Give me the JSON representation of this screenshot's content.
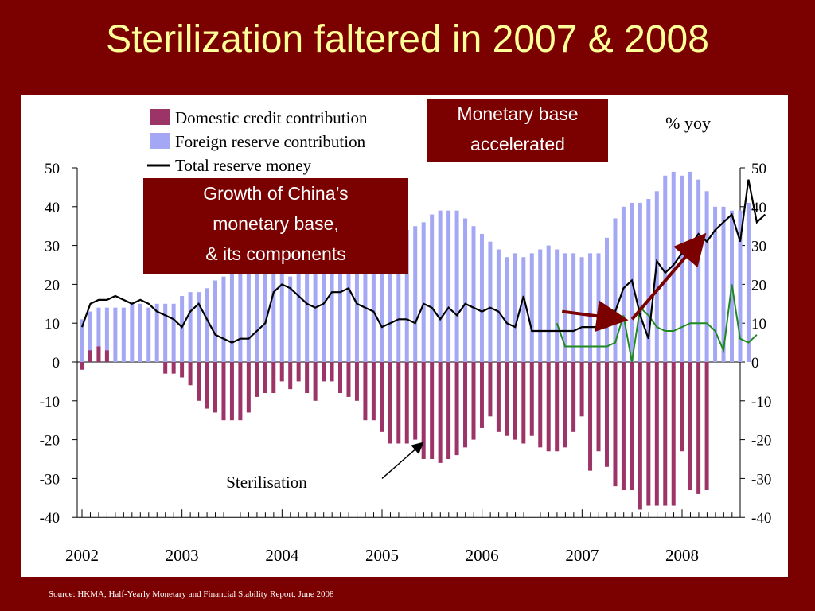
{
  "slide": {
    "title": "Sterilization faltered in 2007 & 2008",
    "source": "Source: HKMA, Half-Yearly Monetary and Financial Stability Report, June 2008"
  },
  "callouts": {
    "monetary_base": [
      "Monetary base",
      "accelerated"
    ],
    "growth": [
      "Growth of China’s",
      "monetary base,",
      "& its components"
    ]
  },
  "colors": {
    "background": "#7b0000",
    "title": "#ffff99",
    "domestic": "#9c3468",
    "foreign": "#a4a8f4",
    "total": "#000000",
    "green_line": "#1f8a1f",
    "arrow": "#7b0000"
  },
  "chart_data": {
    "type": "bar",
    "unit_label": "% yoy",
    "annotation": "Sterilisation",
    "ylim": [
      -40,
      50
    ],
    "y_ticks": [
      50,
      40,
      30,
      20,
      10,
      0,
      -10,
      -20,
      -30,
      -40
    ],
    "x_tick_labels": [
      "2002",
      "2003",
      "2004",
      "2005",
      "2006",
      "2007",
      "2008"
    ],
    "x_tick_positions": [
      2002,
      2003,
      2004,
      2005,
      2006,
      2007,
      2008
    ],
    "start_year": 2002,
    "period_step": 0.0833,
    "legend": [
      {
        "name": "Domestic credit contribution",
        "kind": "bar",
        "color": "#9c3468"
      },
      {
        "name": "Foreign reserve contribution",
        "kind": "bar",
        "color": "#a4a8f4"
      },
      {
        "name": "Total reserve money",
        "kind": "line",
        "color": "#000000"
      }
    ],
    "series": [
      {
        "name": "Foreign reserve contribution",
        "values": [
          11,
          13,
          14,
          14,
          14,
          14,
          15,
          15,
          14,
          15,
          15,
          15,
          17,
          18,
          18,
          19,
          21,
          22,
          24,
          25,
          25,
          26,
          26,
          27,
          24,
          22,
          23,
          24,
          25,
          26,
          28,
          30,
          32,
          34,
          35,
          36,
          28,
          30,
          32,
          34,
          35,
          36,
          38,
          39,
          39,
          39,
          37,
          35,
          33,
          31,
          29,
          27,
          28,
          27,
          28,
          29,
          30,
          29,
          28,
          28,
          27,
          28,
          28,
          32,
          37,
          40,
          41,
          41,
          42,
          44,
          48,
          49,
          48,
          49,
          47,
          44,
          40,
          40,
          39,
          39,
          41
        ]
      },
      {
        "name": "Domestic credit contribution",
        "values": [
          -2,
          3,
          4,
          3,
          0,
          0,
          0,
          0,
          0,
          0,
          -3,
          -3,
          -4,
          -6,
          -10,
          -12,
          -13,
          -15,
          -15,
          -15,
          -13,
          -9,
          -8,
          -8,
          -5,
          -7,
          -5,
          -8,
          -10,
          -5,
          -5,
          -8,
          -9,
          -10,
          -15,
          -15,
          -18,
          -21,
          -21,
          -21,
          -20,
          -25,
          -25,
          -26,
          -25,
          -24,
          -22,
          -20,
          -17,
          -14,
          -18,
          -19,
          -20,
          -21,
          -19,
          -22,
          -23,
          -23,
          -22,
          -18,
          -14,
          -28,
          -23,
          -27,
          -32,
          -33,
          -33,
          -38,
          -37,
          -37,
          -37,
          -37,
          -23,
          -33,
          -34,
          -33
        ]
      },
      {
        "name": "Total reserve money",
        "kind": "line",
        "values": [
          9,
          15,
          16,
          16,
          17,
          16,
          15,
          16,
          15,
          13,
          12,
          11,
          9,
          13,
          15,
          11,
          7,
          6,
          5,
          6,
          6,
          8,
          10,
          18,
          20,
          19,
          17,
          15,
          14,
          15,
          18,
          18,
          19,
          15,
          14,
          13,
          9,
          10,
          11,
          11,
          10,
          15,
          14,
          11,
          14,
          12,
          15,
          14,
          13,
          14,
          13,
          10,
          9,
          17,
          8,
          8,
          8,
          8,
          8,
          8,
          9,
          9,
          9,
          9,
          13,
          19,
          21,
          12,
          6,
          26,
          23,
          25,
          28,
          30,
          33,
          31,
          34,
          36,
          38,
          31,
          47,
          36,
          38
        ]
      },
      {
        "name": "",
        "kind": "line",
        "start_index": 57,
        "values": [
          10,
          4,
          4,
          4,
          4,
          4,
          4,
          5,
          12,
          0,
          14,
          12,
          9,
          8,
          8,
          9,
          10,
          10,
          10,
          8,
          3,
          20,
          6,
          5,
          7
        ]
      }
    ],
    "arrows": [
      {
        "from": [
          2006.8,
          13
        ],
        "to": [
          2007.4,
          11
        ]
      },
      {
        "from": [
          2007.5,
          11
        ],
        "to": [
          2008.2,
          32
        ]
      },
      {
        "from": [
          2005.0,
          -30
        ],
        "to": [
          2005.4,
          -21
        ]
      }
    ]
  }
}
